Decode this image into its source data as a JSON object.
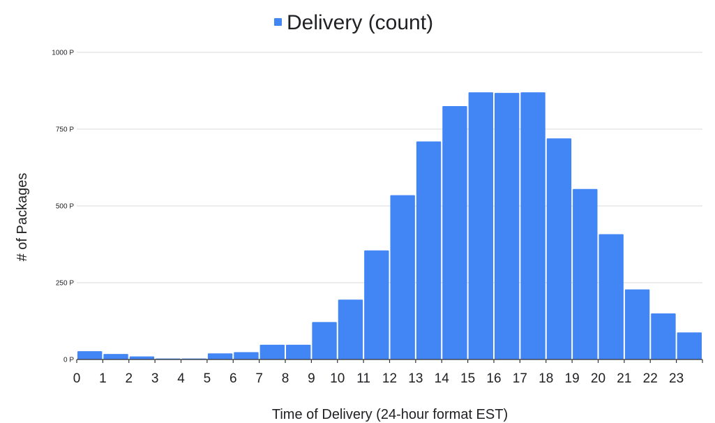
{
  "chart_data": {
    "type": "bar",
    "title": "",
    "xlabel": "Time of Delivery (24-hour format EST)",
    "ylabel": "# of Packages",
    "legend": {
      "position": "top",
      "entries": [
        {
          "name": "Delivery (count)",
          "color": "#4285f4"
        }
      ]
    },
    "series": [
      {
        "name": "Delivery (count)",
        "color": "#4285f4",
        "bins": [
          [
            0,
            1
          ],
          [
            1,
            2
          ],
          [
            2,
            3
          ],
          [
            3,
            4
          ],
          [
            4,
            5
          ],
          [
            5,
            6
          ],
          [
            6,
            7
          ],
          [
            7,
            8
          ],
          [
            8,
            9
          ],
          [
            9,
            10
          ],
          [
            10,
            11
          ],
          [
            11,
            12
          ],
          [
            12,
            13
          ],
          [
            13,
            14
          ],
          [
            14,
            15
          ],
          [
            15,
            16
          ],
          [
            16,
            17
          ],
          [
            17,
            18
          ],
          [
            18,
            19
          ],
          [
            19,
            20
          ],
          [
            20,
            21
          ],
          [
            21,
            22
          ],
          [
            22,
            23
          ],
          [
            23,
            24
          ]
        ],
        "values": [
          27,
          18,
          10,
          3,
          3,
          20,
          24,
          48,
          48,
          122,
          195,
          355,
          535,
          710,
          825,
          870,
          868,
          870,
          720,
          555,
          408,
          228,
          150,
          88
        ]
      }
    ],
    "x_ticks": [
      "0",
      "1",
      "2",
      "3",
      "4",
      "5",
      "6",
      "7",
      "8",
      "9",
      "10",
      "11",
      "12",
      "13",
      "14",
      "15",
      "16",
      "17",
      "18",
      "19",
      "20",
      "21",
      "22",
      "23"
    ],
    "x_range": [
      0,
      24
    ],
    "y_ticks": [
      {
        "value": 0,
        "label": "0 P"
      },
      {
        "value": 250,
        "label": "250 P"
      },
      {
        "value": 500,
        "label": "500 P"
      },
      {
        "value": 750,
        "label": "750 P"
      },
      {
        "value": 1000,
        "label": "1000 P"
      }
    ],
    "ylim": [
      0,
      1000
    ],
    "grid": true
  }
}
